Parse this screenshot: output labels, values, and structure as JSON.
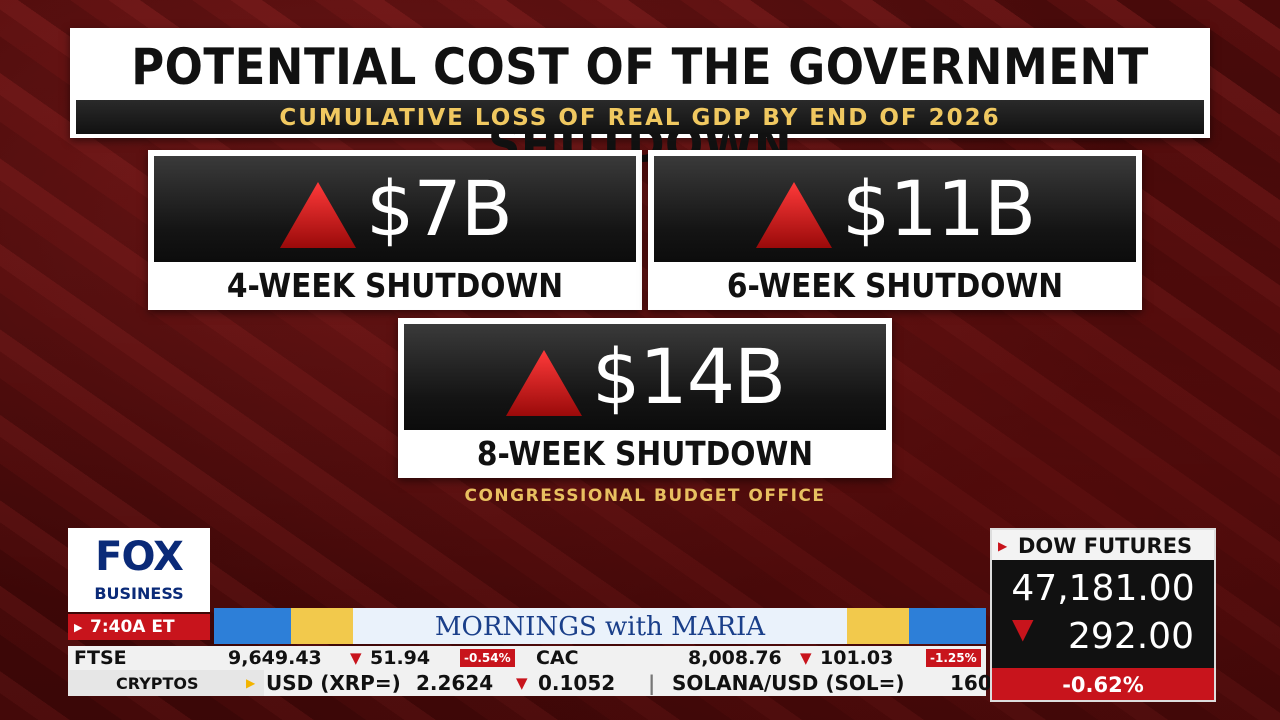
{
  "title": "POTENTIAL COST OF THE GOVERNMENT SHUTDOWN",
  "subtitle": "CUMULATIVE LOSS OF REAL GDP BY END OF 2026",
  "cards": [
    {
      "value": "$7B",
      "label": "4-WEEK SHUTDOWN"
    },
    {
      "value": "$11B",
      "label": "6-WEEK SHUTDOWN"
    },
    {
      "value": "$14B",
      "label": "8-WEEK SHUTDOWN"
    }
  ],
  "source": "CONGRESSIONAL BUDGET OFFICE",
  "logo": {
    "line1": "FOX",
    "line2": "BUSINESS"
  },
  "time": "7:40A ET",
  "show_name": "MORNINGS with MARIA",
  "ticker": {
    "ftse": {
      "name": "FTSE",
      "value": "9,649.43",
      "change": "51.94",
      "pct": "-0.54%"
    },
    "cac": {
      "name": "CAC",
      "value": "8,008.76",
      "change": "101.03",
      "pct": "-1.25%"
    },
    "crypto_label": "CRYPTOS",
    "crypto_row": {
      "a": "USD (XRP=)",
      "b": "2.2624",
      "c": "0.1052",
      "sep": "|",
      "d": "SOLANA/USD (SOL=)",
      "e": "160"
    }
  },
  "dow": {
    "label": "DOW FUTURES",
    "value": "47,181.00",
    "change": "292.00",
    "pct": "-0.62%"
  },
  "colors": {
    "accent_red": "#c8141c",
    "gold": "#f0c860",
    "navy": "#0a2a78"
  }
}
